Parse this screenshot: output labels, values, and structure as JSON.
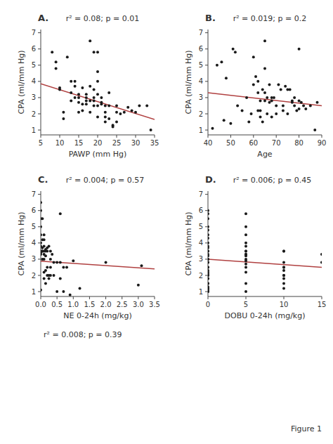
{
  "chart_data": [
    {
      "type": "scatter",
      "title": "A.",
      "subtitle": "r² = 0.08; p = 0.01",
      "xlabel": "PAWP (mm Hg)",
      "ylabel": "CPA (ml/mm Hg)",
      "xlim": [
        5,
        35
      ],
      "ylim": [
        0.7,
        7.2
      ],
      "xticks": [
        5,
        10,
        15,
        20,
        25,
        30,
        35
      ],
      "yticks": [
        1,
        2,
        3,
        4,
        5,
        6,
        7
      ],
      "grid": false,
      "series": [
        {
          "type": "scatter",
          "color": "#1a1a1a",
          "x": [
            8,
            9,
            9,
            10,
            10,
            11,
            11,
            12,
            13,
            13,
            13,
            14,
            14,
            14,
            15,
            15,
            15,
            15,
            16,
            16,
            16,
            17,
            17,
            17,
            17,
            18,
            18,
            18,
            18,
            19,
            19,
            19,
            19,
            19,
            20,
            20,
            20,
            20,
            20,
            20,
            21,
            21,
            21,
            22,
            22,
            22,
            22,
            23,
            23,
            23,
            24,
            24,
            25,
            25,
            25,
            26,
            27,
            28,
            29,
            30,
            31,
            33,
            34
          ],
          "values": [
            5.8,
            4.8,
            5.2,
            3.6,
            3.5,
            2.1,
            1.7,
            5.5,
            4.0,
            3.3,
            2.8,
            4.0,
            3.7,
            3.0,
            3.2,
            3.0,
            2.7,
            2.1,
            3.6,
            2.6,
            2.2,
            3.2,
            3.0,
            2.8,
            2.6,
            6.5,
            3.7,
            2.8,
            2.1,
            5.8,
            3.5,
            3.0,
            2.8,
            2.5,
            5.8,
            4.6,
            4.0,
            3.2,
            2.5,
            1.8,
            3.0,
            2.7,
            2.6,
            2.5,
            2.1,
            1.8,
            1.5,
            3.3,
            2.5,
            1.7,
            1.3,
            1.2,
            2.1,
            2.5,
            1.5,
            2.0,
            2.1,
            2.4,
            2.2,
            2.1,
            2.5,
            2.5,
            1.0
          ]
        },
        {
          "type": "line",
          "color": "#b04040",
          "x": [
            5,
            35
          ],
          "values": [
            3.85,
            1.65
          ]
        }
      ]
    },
    {
      "type": "scatter",
      "title": "B.",
      "subtitle": "r² = 0.019; p = 0.2",
      "xlabel": "Age",
      "ylabel": "CPA (ml/mm Hg)",
      "xlim": [
        40,
        90
      ],
      "ylim": [
        0.7,
        7.2
      ],
      "xticks": [
        40,
        50,
        60,
        70,
        80,
        90
      ],
      "yticks": [
        1,
        2,
        3,
        4,
        5,
        6,
        7
      ],
      "grid": false,
      "series": [
        {
          "type": "scatter",
          "color": "#1a1a1a",
          "x": [
            42,
            44,
            46,
            47,
            48,
            50,
            51,
            52,
            53,
            55,
            57,
            58,
            59,
            60,
            60,
            61,
            62,
            62,
            62,
            63,
            63,
            63,
            64,
            64,
            65,
            65,
            65,
            65,
            66,
            66,
            67,
            67,
            68,
            68,
            68,
            69,
            70,
            70,
            71,
            72,
            73,
            73,
            74,
            75,
            75,
            76,
            77,
            77,
            78,
            78,
            79,
            80,
            80,
            80,
            81,
            82,
            83,
            85,
            87,
            88
          ],
          "values": [
            1.1,
            5.0,
            5.2,
            1.6,
            4.2,
            1.4,
            6.0,
            5.8,
            2.5,
            2.2,
            3.0,
            1.5,
            2.0,
            3.8,
            5.5,
            4.3,
            4.0,
            3.3,
            2.2,
            2.8,
            2.2,
            1.8,
            3.5,
            1.5,
            6.5,
            4.8,
            3.3,
            2.8,
            3.0,
            2.0,
            3.8,
            2.7,
            3.0,
            2.8,
            1.8,
            3.0,
            2.5,
            2.0,
            3.8,
            3.5,
            2.5,
            2.2,
            3.7,
            3.5,
            2.0,
            3.5,
            2.8,
            2.7,
            3.0,
            2.5,
            2.2,
            6.0,
            2.8,
            2.3,
            2.7,
            2.5,
            2.3,
            2.5,
            1.0,
            2.7
          ]
        },
        {
          "type": "line",
          "color": "#b04040",
          "x": [
            40,
            90
          ],
          "values": [
            3.3,
            2.5
          ]
        }
      ]
    },
    {
      "type": "scatter",
      "title": "C.",
      "subtitle": "r² = 0.004; p = 0.57",
      "xlabel": "NE 0-24h (mg/kg)",
      "ylabel": "CPA (ml/mm Hg)",
      "xlim": [
        0,
        3.5
      ],
      "ylim": [
        0.7,
        7.2
      ],
      "xticks": [
        {
          "value": 0,
          "label": "0.0"
        },
        0.5,
        {
          "value": 1,
          "label": "1.0"
        },
        1.5,
        {
          "value": 2,
          "label": "2.0"
        },
        2.5,
        {
          "value": 3,
          "label": "3.0"
        },
        3.5
      ],
      "yticks": [
        1,
        2,
        3,
        4,
        5,
        6,
        7
      ],
      "grid": false,
      "annotations": [
        "r² = 0.008; p = 0.39"
      ],
      "series": [
        {
          "type": "scatter",
          "color": "#1a1a1a",
          "x": [
            0.0,
            0.0,
            0.0,
            0.0,
            0.0,
            0.0,
            0.0,
            0.0,
            0.0,
            0.0,
            0.0,
            0.05,
            0.05,
            0.05,
            0.05,
            0.05,
            0.05,
            0.1,
            0.1,
            0.1,
            0.1,
            0.1,
            0.1,
            0.1,
            0.1,
            0.15,
            0.15,
            0.15,
            0.15,
            0.15,
            0.2,
            0.2,
            0.2,
            0.2,
            0.25,
            0.25,
            0.25,
            0.3,
            0.3,
            0.3,
            0.3,
            0.35,
            0.4,
            0.4,
            0.5,
            0.5,
            0.6,
            0.6,
            0.6,
            0.7,
            0.7,
            0.8,
            0.9,
            1.0,
            1.2,
            2.0,
            3.0,
            3.1
          ],
          "values": [
            6.5,
            6.0,
            5.5,
            5.0,
            4.5,
            4.0,
            3.8,
            3.5,
            3.4,
            3.3,
            1.1,
            5.5,
            4.2,
            3.7,
            3.5,
            3.5,
            3.0,
            4.5,
            4.2,
            3.8,
            3.5,
            3.3,
            3.0,
            2.2,
            1.8,
            3.6,
            3.5,
            3.2,
            2.3,
            1.5,
            3.7,
            3.5,
            2.5,
            2.0,
            3.8,
            2.0,
            1.8,
            3.5,
            3.0,
            2.5,
            2.0,
            3.3,
            2.8,
            2.0,
            2.8,
            1.0,
            5.8,
            2.8,
            1.8,
            2.5,
            1.0,
            2.5,
            0.8,
            2.9,
            1.2,
            2.8,
            1.4,
            2.6
          ]
        },
        {
          "type": "line",
          "color": "#b04040",
          "x": [
            0,
            3.5
          ],
          "values": [
            2.88,
            2.4
          ]
        }
      ]
    },
    {
      "type": "scatter",
      "title": "D.",
      "subtitle": "r² = 0.006; p = 0.45",
      "xlabel": "DOBU 0-24h (mg/kg)",
      "ylabel": "CPA (ml/mm Hg)",
      "xlim": [
        0,
        15
      ],
      "ylim": [
        0.7,
        7.2
      ],
      "xticks": [
        0,
        5,
        10,
        15
      ],
      "yticks": [
        1,
        2,
        3,
        4,
        5,
        6,
        7
      ],
      "grid": false,
      "annotations": [
        "Figure 1"
      ],
      "series": [
        {
          "type": "scatter",
          "color": "#1a1a1a",
          "x": [
            0,
            0,
            0,
            0,
            0,
            0,
            0,
            0,
            0,
            0,
            0,
            0,
            0,
            0,
            0,
            0,
            0,
            0,
            0,
            0,
            0,
            0,
            0,
            0,
            0,
            0,
            0,
            0,
            0,
            0,
            0,
            0,
            0,
            0,
            0,
            5,
            5,
            5,
            5,
            5,
            5,
            5,
            5,
            5,
            5,
            5,
            5,
            5,
            5,
            5,
            5,
            5,
            10,
            10,
            10,
            10,
            10,
            10,
            10,
            10,
            10,
            10,
            10,
            15,
            15
          ],
          "values": [
            6.0,
            5.8,
            5.5,
            5.0,
            4.8,
            4.5,
            4.3,
            4.0,
            3.8,
            3.7,
            3.5,
            3.3,
            3.2,
            3.0,
            2.8,
            2.5,
            2.3,
            2.1,
            2.0,
            1.8,
            1.5,
            1.3,
            1.2,
            1.1,
            1.0,
            3.5,
            2.8,
            2.5,
            2.2,
            2.0,
            1.8,
            1.5,
            1.2,
            1.0,
            3.0,
            5.8,
            5.0,
            4.5,
            4.0,
            3.8,
            3.5,
            3.3,
            3.2,
            3.0,
            2.9,
            2.7,
            2.5,
            2.2,
            1.5,
            1.0,
            3.3,
            3.5,
            3.5,
            2.8,
            2.5,
            2.3,
            2.0,
            2.5,
            2.0,
            1.8,
            1.5,
            1.2,
            3.5,
            3.3,
            2.8
          ]
        },
        {
          "type": "line",
          "color": "#b04040",
          "x": [
            0,
            15
          ],
          "values": [
            3.0,
            2.5
          ]
        }
      ]
    }
  ]
}
